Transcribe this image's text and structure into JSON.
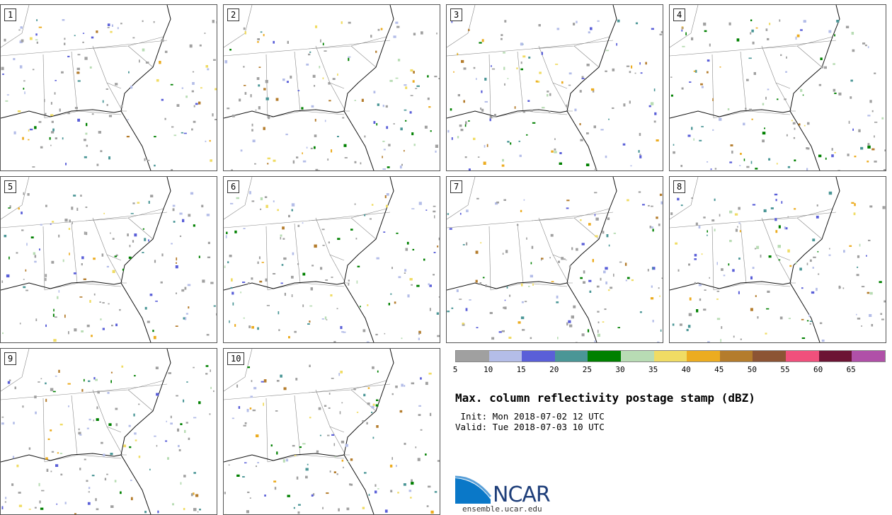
{
  "panels": [
    {
      "label": "1"
    },
    {
      "label": "2"
    },
    {
      "label": "3"
    },
    {
      "label": "4"
    },
    {
      "label": "5"
    },
    {
      "label": "6"
    },
    {
      "label": "7"
    },
    {
      "label": "8"
    },
    {
      "label": "9"
    },
    {
      "label": "10"
    }
  ],
  "colorbar": {
    "colors": [
      "#a0a0a0",
      "#b4bde8",
      "#5a5fd8",
      "#4a9696",
      "#008000",
      "#b8dcb4",
      "#f0dc64",
      "#ecac20",
      "#b47c2c",
      "#8c5434",
      "#f0507c",
      "#6c1434",
      "#b050a8"
    ],
    "ticks": [
      "5",
      "10",
      "15",
      "20",
      "25",
      "30",
      "35",
      "40",
      "45",
      "50",
      "55",
      "60",
      "65"
    ]
  },
  "title": "Max. column reflectivity postage stamp (dBZ)",
  "init": " Init: Mon 2018-07-02 12 UTC",
  "valid": "Valid: Tue 2018-07-03 10 UTC",
  "logo": {
    "name": "NCAR",
    "url": "ensemble.ucar.edu"
  }
}
